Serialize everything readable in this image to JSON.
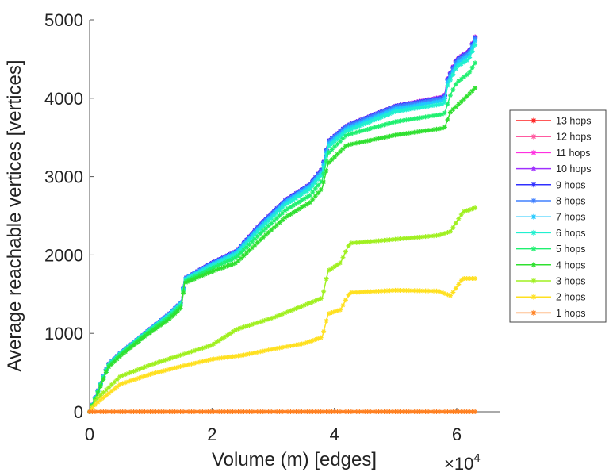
{
  "chart_data": {
    "type": "line",
    "title": "",
    "xlabel": "Volume (m) [edges]",
    "ylabel": "Average reachable vertices [vertices]",
    "x_multiplier_label": "×10",
    "x_multiplier_exp": "4",
    "xlim": [
      0,
      6.7
    ],
    "ylim": [
      0,
      5000
    ],
    "xticks": [
      0,
      2,
      4,
      6
    ],
    "xtick_labels": [
      "0",
      "2",
      "4",
      "6"
    ],
    "yticks": [
      0,
      1000,
      2000,
      3000,
      4000,
      5000
    ],
    "ytick_labels": [
      "0",
      "1000",
      "2000",
      "3000",
      "4000",
      "5000"
    ],
    "grid": false,
    "legend_position": "right",
    "x_units_note": "x values in units of 10^4 edges",
    "series": [
      {
        "name": "13 hops",
        "color": "#ff2020",
        "x": [
          0,
          0.1,
          0.3,
          0.5,
          0.9,
          1.3,
          1.5,
          1.55,
          2.0,
          2.4,
          2.8,
          3.2,
          3.6,
          3.8,
          3.9,
          4.2,
          5.0,
          5.8,
          5.85,
          6.0,
          6.2,
          6.3
        ],
        "y": [
          0,
          200,
          600,
          750,
          1000,
          1250,
          1400,
          1700,
          1900,
          2050,
          2400,
          2700,
          2900,
          3100,
          3450,
          3650,
          3900,
          4020,
          4250,
          4500,
          4600,
          4780
        ]
      },
      {
        "name": "12 hops",
        "color": "#ff5aa0",
        "x": [
          0,
          0.1,
          0.3,
          0.5,
          0.9,
          1.3,
          1.5,
          1.55,
          2.0,
          2.4,
          2.8,
          3.2,
          3.6,
          3.8,
          3.9,
          4.2,
          5.0,
          5.8,
          5.85,
          6.0,
          6.2,
          6.3
        ],
        "y": [
          0,
          200,
          600,
          750,
          1000,
          1250,
          1400,
          1700,
          1900,
          2050,
          2400,
          2700,
          2900,
          3100,
          3450,
          3650,
          3900,
          4020,
          4250,
          4500,
          4600,
          4780
        ]
      },
      {
        "name": "11 hops",
        "color": "#ff30e0",
        "x": [
          0,
          0.1,
          0.3,
          0.5,
          0.9,
          1.3,
          1.5,
          1.55,
          2.0,
          2.4,
          2.8,
          3.2,
          3.6,
          3.8,
          3.9,
          4.2,
          5.0,
          5.8,
          5.85,
          6.0,
          6.2,
          6.3
        ],
        "y": [
          0,
          200,
          600,
          750,
          1000,
          1250,
          1400,
          1700,
          1900,
          2050,
          2400,
          2700,
          2900,
          3100,
          3450,
          3650,
          3900,
          4020,
          4250,
          4500,
          4600,
          4780
        ]
      },
      {
        "name": "10 hops",
        "color": "#a030ff",
        "x": [
          0,
          0.1,
          0.3,
          0.5,
          0.9,
          1.3,
          1.5,
          1.55,
          2.0,
          2.4,
          2.8,
          3.2,
          3.6,
          3.8,
          3.9,
          4.2,
          5.0,
          5.8,
          5.85,
          6.0,
          6.2,
          6.3
        ],
        "y": [
          0,
          200,
          600,
          750,
          1000,
          1250,
          1400,
          1700,
          1900,
          2050,
          2400,
          2700,
          2900,
          3100,
          3450,
          3650,
          3900,
          4020,
          4250,
          4500,
          4600,
          4780
        ]
      },
      {
        "name": "9 hops",
        "color": "#3030ff",
        "x": [
          0,
          0.1,
          0.3,
          0.5,
          0.9,
          1.3,
          1.5,
          1.55,
          2.0,
          2.4,
          2.8,
          3.2,
          3.6,
          3.8,
          3.9,
          4.2,
          5.0,
          5.8,
          5.85,
          6.0,
          6.2,
          6.3
        ],
        "y": [
          0,
          200,
          600,
          750,
          1000,
          1250,
          1400,
          1700,
          1900,
          2050,
          2400,
          2700,
          2900,
          3100,
          3450,
          3650,
          3900,
          4010,
          4240,
          4490,
          4590,
          4770
        ]
      },
      {
        "name": "8 hops",
        "color": "#4080ff",
        "x": [
          0,
          0.1,
          0.3,
          0.5,
          0.9,
          1.3,
          1.5,
          1.55,
          2.0,
          2.4,
          2.8,
          3.2,
          3.6,
          3.8,
          3.9,
          4.2,
          5.0,
          5.8,
          5.85,
          6.0,
          6.2,
          6.3
        ],
        "y": [
          0,
          200,
          600,
          750,
          1000,
          1250,
          1400,
          1700,
          1890,
          2040,
          2390,
          2690,
          2890,
          3090,
          3440,
          3640,
          3890,
          4000,
          4230,
          4480,
          4580,
          4760
        ]
      },
      {
        "name": "7 hops",
        "color": "#20c8ff",
        "x": [
          0,
          0.1,
          0.3,
          0.5,
          0.9,
          1.3,
          1.5,
          1.55,
          2.0,
          2.4,
          2.8,
          3.2,
          3.6,
          3.8,
          3.9,
          4.2,
          5.0,
          5.8,
          5.85,
          6.0,
          6.2,
          6.3
        ],
        "y": [
          0,
          195,
          595,
          745,
          995,
          1240,
          1390,
          1690,
          1880,
          2030,
          2370,
          2670,
          2870,
          3060,
          3410,
          3610,
          3860,
          3970,
          4200,
          4440,
          4550,
          4730
        ]
      },
      {
        "name": "6 hops",
        "color": "#20f0d0",
        "x": [
          0,
          0.1,
          0.3,
          0.5,
          0.9,
          1.3,
          1.5,
          1.55,
          2.0,
          2.4,
          2.8,
          3.2,
          3.6,
          3.8,
          3.9,
          4.2,
          5.0,
          5.8,
          5.85,
          6.0,
          6.2,
          6.3
        ],
        "y": [
          0,
          190,
          590,
          740,
          990,
          1230,
          1380,
          1680,
          1860,
          2010,
          2340,
          2640,
          2840,
          3030,
          3380,
          3580,
          3830,
          3930,
          4160,
          4400,
          4500,
          4680
        ]
      },
      {
        "name": "5 hops",
        "color": "#20f070",
        "x": [
          0,
          0.1,
          0.3,
          0.5,
          0.9,
          1.3,
          1.5,
          1.55,
          2.0,
          2.4,
          2.8,
          3.2,
          3.6,
          3.8,
          3.9,
          4.2,
          5.0,
          5.8,
          5.9,
          6.0,
          6.2,
          6.3
        ],
        "y": [
          0,
          185,
          580,
          730,
          980,
          1210,
          1360,
          1660,
          1830,
          1970,
          2280,
          2570,
          2760,
          2950,
          3300,
          3530,
          3700,
          3800,
          4050,
          4200,
          4320,
          4450
        ]
      },
      {
        "name": "4 hops",
        "color": "#30e030",
        "x": [
          0,
          0.1,
          0.3,
          0.5,
          0.9,
          1.3,
          1.5,
          1.55,
          2.0,
          2.4,
          2.8,
          3.2,
          3.6,
          3.8,
          3.9,
          4.2,
          5.0,
          5.8,
          5.9,
          6.0,
          6.2,
          6.3
        ],
        "y": [
          0,
          170,
          560,
          710,
          960,
          1180,
          1330,
          1640,
          1790,
          1900,
          2200,
          2480,
          2670,
          2850,
          3170,
          3400,
          3530,
          3620,
          3830,
          3900,
          4050,
          4130
        ]
      },
      {
        "name": "3 hops",
        "color": "#a0f020",
        "x": [
          0,
          0.1,
          0.5,
          1.0,
          2.0,
          2.4,
          3.0,
          3.8,
          3.9,
          4.1,
          4.25,
          5.0,
          5.7,
          5.9,
          6.1,
          6.3
        ],
        "y": [
          0,
          150,
          450,
          600,
          850,
          1050,
          1200,
          1450,
          1800,
          1900,
          2150,
          2200,
          2250,
          2300,
          2550,
          2600
        ]
      },
      {
        "name": "2 hops",
        "color": "#ffe020",
        "x": [
          0,
          0.1,
          0.5,
          1.0,
          1.5,
          2.0,
          2.5,
          3.0,
          3.5,
          3.8,
          3.9,
          4.1,
          4.25,
          5.0,
          5.7,
          5.9,
          6.1,
          6.3
        ],
        "y": [
          0,
          100,
          350,
          480,
          580,
          670,
          720,
          800,
          870,
          950,
          1250,
          1300,
          1520,
          1550,
          1540,
          1480,
          1700,
          1700
        ]
      },
      {
        "name": "1 hops",
        "color": "#ff8020",
        "x": [
          0,
          6.3
        ],
        "y": [
          0,
          0
        ]
      }
    ]
  }
}
